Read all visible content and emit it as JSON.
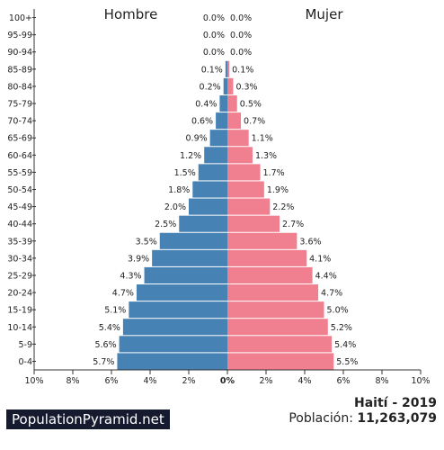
{
  "chart_data": {
    "type": "bar",
    "orientation": "horizontal-pyramid",
    "left_title": "Hombre",
    "right_title": "Mujer",
    "categories": [
      "0-4",
      "5-9",
      "10-14",
      "15-19",
      "20-24",
      "25-29",
      "30-34",
      "35-39",
      "40-44",
      "45-49",
      "50-54",
      "55-59",
      "60-64",
      "65-69",
      "70-74",
      "75-79",
      "80-84",
      "85-89",
      "90-94",
      "95-99",
      "100+"
    ],
    "series": [
      {
        "name": "Hombre",
        "color": "#4682b4",
        "values": [
          5.7,
          5.6,
          5.4,
          5.1,
          4.7,
          4.3,
          3.9,
          3.5,
          2.5,
          2.0,
          1.8,
          1.5,
          1.2,
          0.9,
          0.6,
          0.4,
          0.2,
          0.1,
          0.0,
          0.0,
          0.0
        ]
      },
      {
        "name": "Mujer",
        "color": "#f08090",
        "values": [
          5.5,
          5.4,
          5.2,
          5.0,
          4.7,
          4.4,
          4.1,
          3.6,
          2.7,
          2.2,
          1.9,
          1.7,
          1.3,
          1.1,
          0.7,
          0.5,
          0.3,
          0.1,
          0.0,
          0.0,
          0.0
        ]
      }
    ],
    "value_labels_left": [
      "5.7%",
      "5.6%",
      "5.4%",
      "5.1%",
      "4.7%",
      "4.3%",
      "3.9%",
      "3.5%",
      "2.5%",
      "2.0%",
      "1.8%",
      "1.5%",
      "1.2%",
      "0.9%",
      "0.6%",
      "0.4%",
      "0.2%",
      "0.1%",
      "0.0%",
      "0.0%",
      "0.0%"
    ],
    "value_labels_right": [
      "5.5%",
      "5.4%",
      "5.2%",
      "5.0%",
      "4.7%",
      "4.4%",
      "4.1%",
      "3.6%",
      "2.7%",
      "2.2%",
      "1.9%",
      "1.7%",
      "1.3%",
      "1.1%",
      "0.7%",
      "0.5%",
      "0.3%",
      "0.1%",
      "0.0%",
      "0.0%",
      "0.0%"
    ],
    "xlim": [
      -10,
      10
    ],
    "x_ticks": [
      -10,
      -8,
      -6,
      -4,
      -2,
      0,
      2,
      4,
      6,
      8,
      10
    ],
    "x_tick_labels": [
      "10%",
      "8%",
      "6%",
      "4%",
      "2%",
      "0%",
      "2%",
      "4%",
      "6%",
      "8%",
      "10%"
    ],
    "grid": false
  },
  "footer": {
    "brand": "PopulationPyramid.net",
    "title": "Haití - 2019",
    "population_label": "Población:",
    "population_value": "11,263,079"
  }
}
